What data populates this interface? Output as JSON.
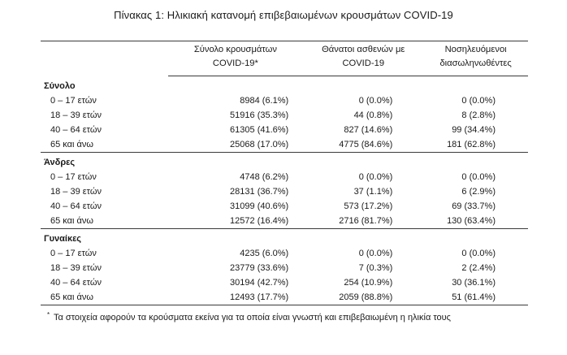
{
  "title": "Πίνακας 1: Ηλικιακή κατανομή επιβεβαιωμένων κρουσμάτων COVID-19",
  "headers": {
    "col1_line1": "Σύνολο κρουσμάτων",
    "col1_line2": "COVID-19*",
    "col2_line1": "Θάνατοι ασθενών με",
    "col2_line2": "COVID-19",
    "col3_line1": "Νοσηλευόμενοι",
    "col3_line2": "διασωληνωθέντες"
  },
  "groups": [
    {
      "name": "Σύνολο",
      "rows": [
        {
          "age": "0 – 17 ετών",
          "cases": "8984 (6.1%)",
          "deaths": "0 (0.0%)",
          "icu": "0 (0.0%)"
        },
        {
          "age": "18 – 39 ετών",
          "cases": "51916 (35.3%)",
          "deaths": "44 (0.8%)",
          "icu": "8 (2.8%)"
        },
        {
          "age": "40 – 64 ετών",
          "cases": "61305 (41.6%)",
          "deaths": "827 (14.6%)",
          "icu": "99 (34.4%)"
        },
        {
          "age": "65 και άνω",
          "cases": "25068 (17.0%)",
          "deaths": "4775 (84.6%)",
          "icu": "181 (62.8%)"
        }
      ]
    },
    {
      "name": "Άνδρες",
      "rows": [
        {
          "age": "0 – 17 ετών",
          "cases": "4748 (6.2%)",
          "deaths": "0 (0.0%)",
          "icu": "0 (0.0%)"
        },
        {
          "age": "18 – 39 ετών",
          "cases": "28131 (36.7%)",
          "deaths": "37 (1.1%)",
          "icu": "6 (2.9%)"
        },
        {
          "age": "40 – 64 ετών",
          "cases": "31099 (40.6%)",
          "deaths": "573 (17.2%)",
          "icu": "69 (33.7%)"
        },
        {
          "age": "65 και άνω",
          "cases": "12572 (16.4%)",
          "deaths": "2716 (81.7%)",
          "icu": "130 (63.4%)"
        }
      ]
    },
    {
      "name": "Γυναίκες",
      "rows": [
        {
          "age": "0 – 17 ετών",
          "cases": "4235 (6.0%)",
          "deaths": "0 (0.0%)",
          "icu": "0 (0.0%)"
        },
        {
          "age": "18 – 39 ετών",
          "cases": "23779 (33.6%)",
          "deaths": "7 (0.3%)",
          "icu": "2 (2.4%)"
        },
        {
          "age": "40 – 64 ετών",
          "cases": "30194 (42.7%)",
          "deaths": "254 (10.9%)",
          "icu": "30 (36.1%)"
        },
        {
          "age": "65 και άνω",
          "cases": "12493 (17.7%)",
          "deaths": "2059 (88.8%)",
          "icu": "51 (61.4%)"
        }
      ]
    }
  ],
  "footnote": {
    "marker": "*",
    "text": "Τα στοιχεία αφορούν τα κρούσματα εκείνα για τα οποία είναι γνωστή και επιβεβαιωμένη η ηλικία τους"
  }
}
